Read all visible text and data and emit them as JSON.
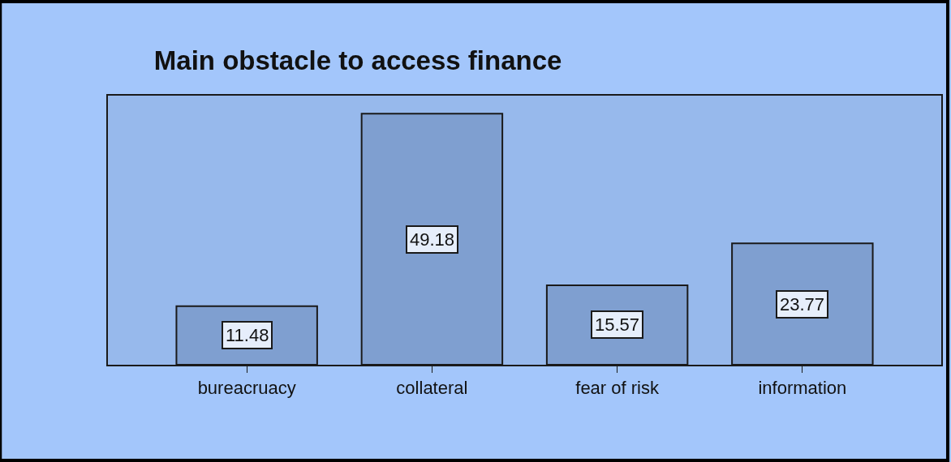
{
  "chart_data": {
    "type": "bar",
    "title": "Main obstacle to access finance",
    "categories": [
      "bureacruacy",
      "collateral",
      "fear of risk",
      "information"
    ],
    "values": [
      11.48,
      49.18,
      15.57,
      23.77
    ],
    "color": "#7f9fd0",
    "ylim": [
      0,
      52.7
    ],
    "data_labels": true,
    "grid": false,
    "legend": false
  }
}
